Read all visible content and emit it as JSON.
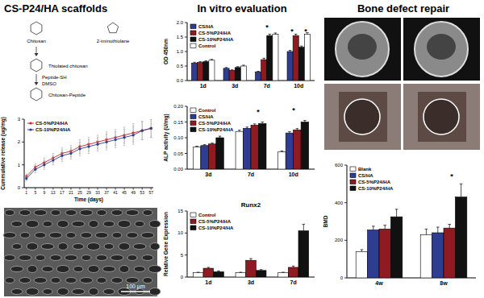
{
  "panels": [
    {
      "title": "CS-P24/HA scaffolds"
    },
    {
      "title": "In vitro evaluation"
    },
    {
      "title": "Bone defect repair"
    }
  ],
  "scheme": {
    "labels": [
      "Chitosan",
      "2-iminothiolane",
      "Thiolated chitosan",
      "Peptide-SH",
      "DMSO",
      "Chitosan-Peptide"
    ]
  },
  "sem": {
    "scale_bar": "100 μm"
  },
  "chart_data": [
    {
      "type": "line",
      "x_label": "Time (days)",
      "y_label": "Cummulative release (ug/mg)",
      "x": [
        1,
        5,
        9,
        13,
        17,
        21,
        25,
        29,
        33,
        37,
        41,
        45,
        49,
        53,
        57
      ],
      "xlim": [
        0,
        58
      ],
      "xticks": [
        1,
        5,
        9,
        13,
        17,
        21,
        25,
        29,
        33,
        37,
        41,
        45,
        49,
        53,
        57
      ],
      "ylim": [
        0,
        3
      ],
      "yticks": [
        0,
        1,
        2,
        3
      ],
      "legend": "top-left",
      "series": [
        {
          "name": "CS-5%P24/HA",
          "color": "#c0282d",
          "marker": "star",
          "values": [
            0.5,
            0.9,
            1.1,
            1.3,
            1.5,
            1.6,
            1.8,
            1.9,
            2.0,
            2.1,
            2.2,
            2.3,
            2.4,
            2.5,
            2.6
          ],
          "errors": [
            0.1,
            0.15,
            0.2,
            0.2,
            0.25,
            0.25,
            0.3,
            0.3,
            0.3,
            0.35,
            0.35,
            0.35,
            0.4,
            0.4,
            0.4
          ]
        },
        {
          "name": "CS-10%P24/HA",
          "color": "#2e3d8f",
          "marker": "circle",
          "values": [
            0.4,
            0.8,
            1.0,
            1.2,
            1.4,
            1.5,
            1.7,
            1.8,
            1.9,
            2.0,
            2.1,
            2.2,
            2.3,
            2.5,
            2.6
          ],
          "errors": [
            0.1,
            0.15,
            0.2,
            0.2,
            0.25,
            0.25,
            0.3,
            0.3,
            0.3,
            0.35,
            0.35,
            0.35,
            0.4,
            0.4,
            0.4
          ]
        }
      ]
    },
    {
      "type": "bar",
      "y_label": "OD 450nm",
      "categories": [
        "1d",
        "3d",
        "7d",
        "10d"
      ],
      "series": [
        {
          "name": "CS/HA",
          "color": "#2e3d8f",
          "values": [
            0.6,
            0.42,
            0.3,
            1.0
          ],
          "errors": [
            0.03,
            0.03,
            0.02,
            0.04
          ]
        },
        {
          "name": "CS-5%P24/HA",
          "color": "#8e1b22",
          "values": [
            0.62,
            0.35,
            0.72,
            1.55
          ],
          "errors": [
            0.03,
            0.02,
            0.05,
            0.05
          ]
        },
        {
          "name": "CS-10%P24/HA",
          "color": "#111111",
          "values": [
            0.65,
            0.45,
            1.55,
            1.15
          ],
          "errors": [
            0.03,
            0.03,
            0.05,
            0.04
          ]
        },
        {
          "name": "Control",
          "color": "#ffffff",
          "values": [
            0.7,
            0.5,
            1.6,
            1.6
          ],
          "errors": [
            0.03,
            0.03,
            0.04,
            0.05
          ]
        }
      ],
      "ylim": [
        0,
        2
      ],
      "yticks": [
        {
          "value": 0,
          "label": "0.0"
        },
        0.5,
        {
          "value": 1,
          "label": "1.0"
        },
        1.5,
        {
          "value": 2,
          "label": "2.0"
        }
      ],
      "legend": "top-left",
      "annotations": [
        "*",
        "*",
        "*"
      ]
    },
    {
      "type": "bar",
      "y_label": "ALP activity (U/mg)",
      "categories": [
        "3d",
        "7d",
        "10d"
      ],
      "series": [
        {
          "name": "Control",
          "color": "#ffffff",
          "values": [
            0.07,
            0.12,
            0.055
          ],
          "errors": [
            0.003,
            0.004,
            0.003
          ]
        },
        {
          "name": "CS/HA",
          "color": "#2e3d8f",
          "values": [
            0.075,
            0.13,
            0.115
          ],
          "errors": [
            0.003,
            0.004,
            0.004
          ]
        },
        {
          "name": "CS-5%P24/HA",
          "color": "#8e1b22",
          "values": [
            0.08,
            0.14,
            0.125
          ],
          "errors": [
            0.003,
            0.004,
            0.004
          ]
        },
        {
          "name": "CS-10%P24/HA",
          "color": "#111111",
          "values": [
            0.1,
            0.145,
            0.15
          ],
          "errors": [
            0.005,
            0.005,
            0.005
          ]
        }
      ],
      "ylim": [
        0,
        0.2
      ],
      "yticks": [
        {
          "value": 0,
          "label": "0.00"
        },
        {
          "value": 0.05,
          "label": "0.05"
        },
        {
          "value": 0.1,
          "label": "0.10"
        },
        {
          "value": 0.15,
          "label": "0.15"
        },
        {
          "value": 0.2,
          "label": "0.20"
        }
      ],
      "legend": "top-left",
      "annotations": [
        "*",
        "*"
      ]
    },
    {
      "type": "bar",
      "title": "Runx2",
      "y_label": "Relative Gene Expression",
      "categories": [
        "1d",
        "3d",
        "7d"
      ],
      "series": [
        {
          "name": "Control",
          "color": "#ffffff",
          "values": [
            1,
            1,
            1
          ],
          "errors": [
            0.1,
            0.1,
            0.1
          ]
        },
        {
          "name": "CS-5%P24/HA",
          "color": "#8e1b22",
          "values": [
            2,
            3.8,
            2.2
          ],
          "errors": [
            0.2,
            0.4,
            0.3
          ]
        },
        {
          "name": "CS-10%P24/HA",
          "color": "#111111",
          "values": [
            1.2,
            1.5,
            10.5
          ],
          "errors": [
            0.2,
            0.2,
            1.5
          ]
        }
      ],
      "ylim": [
        0,
        15
      ],
      "yticks": [
        0,
        5,
        10,
        15
      ],
      "legend": "top-left"
    },
    {
      "type": "bar",
      "y_label": "BMD",
      "categories": [
        "4w",
        "8w"
      ],
      "series": [
        {
          "name": "Blank",
          "color": "#ffffff",
          "values": [
            140,
            230
          ],
          "errors": [
            10,
            30
          ]
        },
        {
          "name": "CS/HA",
          "color": "#2e3d8f",
          "values": [
            255,
            240
          ],
          "errors": [
            20,
            30
          ]
        },
        {
          "name": "CS-5%P24/HA",
          "color": "#8e1b22",
          "values": [
            260,
            265
          ],
          "errors": [
            20,
            20
          ]
        },
        {
          "name": "CS-10%P24/HA",
          "color": "#111111",
          "values": [
            325,
            430
          ],
          "errors": [
            40,
            70
          ]
        }
      ],
      "ylim": [
        0,
        600
      ],
      "yticks": [
        0,
        200,
        400,
        600
      ],
      "legend": "top-left",
      "annotations": [
        "*"
      ]
    }
  ]
}
